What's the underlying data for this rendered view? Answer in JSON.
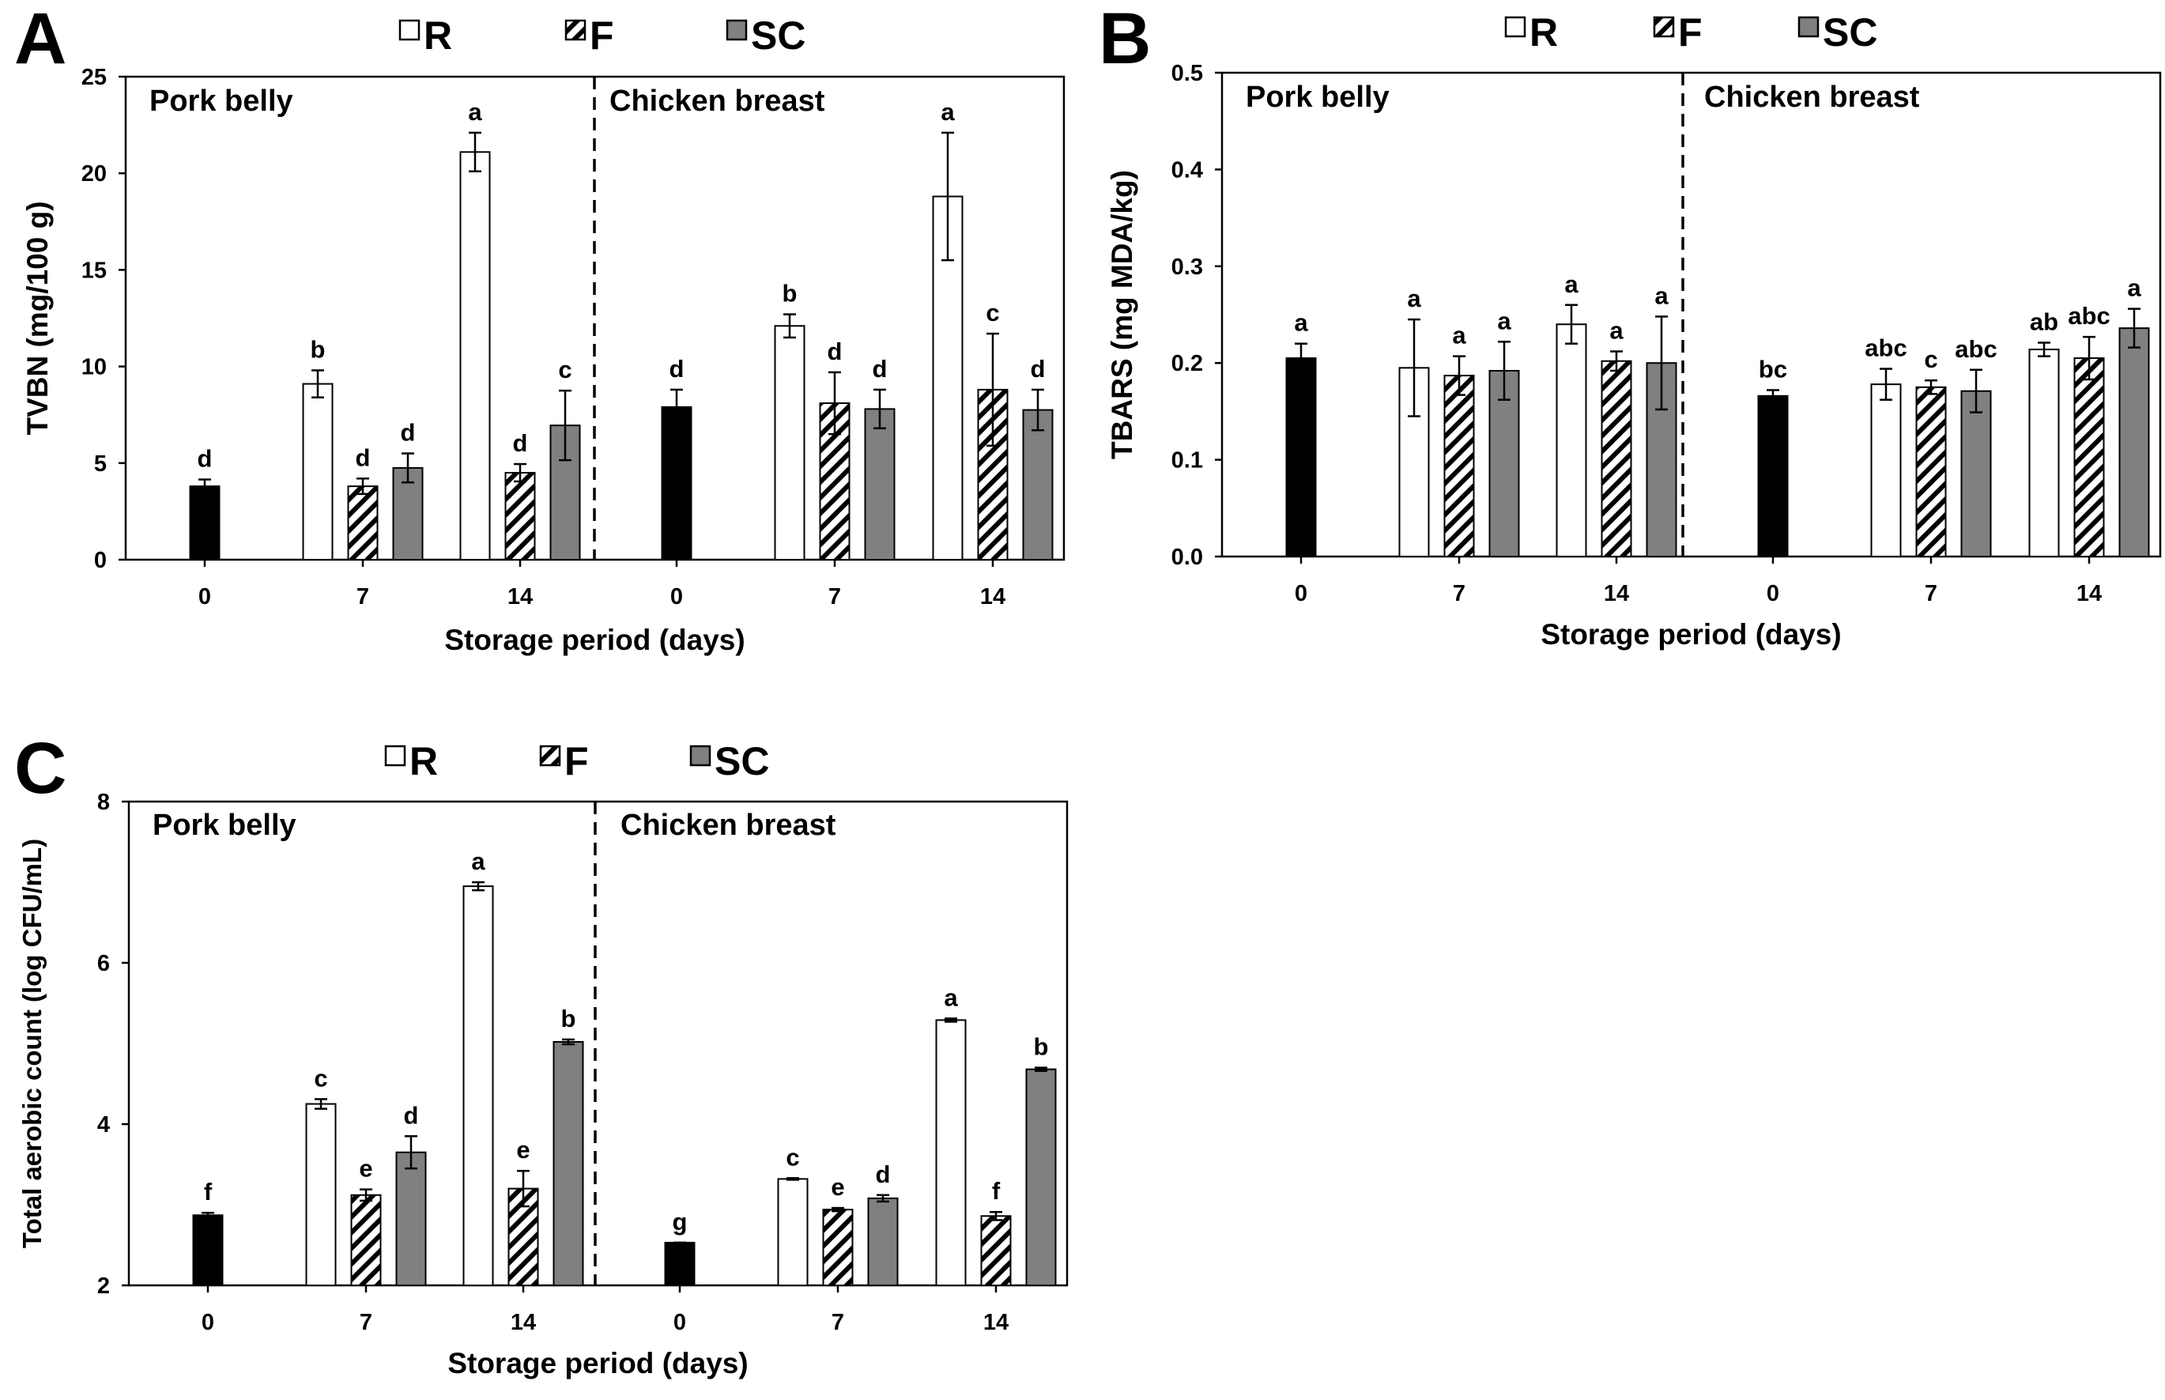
{
  "colors": {
    "R": "#ffffff",
    "F": "hatch",
    "SC": "#808080",
    "Control": "#000000"
  },
  "legend": [
    {
      "key": "R",
      "label": "R",
      "fill": "#ffffff"
    },
    {
      "key": "F",
      "label": "F",
      "fill": "hatch"
    },
    {
      "key": "SC",
      "label": "SC",
      "fill": "#808080"
    }
  ],
  "chart_data": [
    {
      "panel": "A",
      "type": "bar",
      "ylabel": "TVBN (mg/100 g)",
      "xlabel": "Storage period (days)",
      "ylim": [
        0,
        25
      ],
      "yticks": [
        0,
        5,
        10,
        15,
        20,
        25
      ],
      "ytick_labels": [
        "0",
        "5",
        "10",
        "15",
        "20",
        "25"
      ],
      "regions": [
        "Pork belly",
        "Chicken breast"
      ],
      "groups": [
        {
          "region": 0,
          "label": "0",
          "bars": [
            {
              "series": "Control",
              "value": 3.8,
              "err": 0.35,
              "sig": "d"
            }
          ]
        },
        {
          "region": 0,
          "label": "7",
          "bars": [
            {
              "series": "R",
              "value": 9.1,
              "err": 0.7,
              "sig": "b"
            },
            {
              "series": "F",
              "value": 3.8,
              "err": 0.4,
              "sig": "d"
            },
            {
              "series": "SC",
              "value": 4.75,
              "err": 0.75,
              "sig": "d"
            }
          ]
        },
        {
          "region": 0,
          "label": "14",
          "bars": [
            {
              "series": "R",
              "value": 21.1,
              "err": 1.0,
              "sig": "a"
            },
            {
              "series": "F",
              "value": 4.5,
              "err": 0.45,
              "sig": "d"
            },
            {
              "series": "SC",
              "value": 6.95,
              "err": 1.8,
              "sig": "c"
            }
          ]
        },
        {
          "region": 1,
          "label": "0",
          "bars": [
            {
              "series": "Control",
              "value": 7.9,
              "err": 0.9,
              "sig": "d"
            }
          ]
        },
        {
          "region": 1,
          "label": "7",
          "bars": [
            {
              "series": "R",
              "value": 12.1,
              "err": 0.6,
              "sig": "b"
            },
            {
              "series": "F",
              "value": 8.1,
              "err": 1.6,
              "sig": "d"
            },
            {
              "series": "SC",
              "value": 7.8,
              "err": 1.0,
              "sig": "d"
            }
          ]
        },
        {
          "region": 1,
          "label": "14",
          "bars": [
            {
              "series": "R",
              "value": 18.8,
              "err": 3.3,
              "sig": "a"
            },
            {
              "series": "F",
              "value": 8.8,
              "err": 2.9,
              "sig": "c"
            },
            {
              "series": "SC",
              "value": 7.75,
              "err": 1.05,
              "sig": "d"
            }
          ]
        }
      ]
    },
    {
      "panel": "B",
      "type": "bar",
      "ylabel": "TBARS (mg MDA/kg)",
      "xlabel": "Storage period (days)",
      "ylim": [
        0,
        0.5
      ],
      "yticks": [
        0,
        0.1,
        0.2,
        0.3,
        0.4,
        0.5
      ],
      "ytick_labels": [
        "0.0",
        "0.1",
        "0.2",
        "0.3",
        "0.4",
        "0.5"
      ],
      "regions": [
        "Pork belly",
        "Chicken breast"
      ],
      "groups": [
        {
          "region": 0,
          "label": "0",
          "bars": [
            {
              "series": "Control",
              "value": 0.205,
              "err": 0.015,
              "sig": "a"
            }
          ]
        },
        {
          "region": 0,
          "label": "7",
          "bars": [
            {
              "series": "R",
              "value": 0.195,
              "err": 0.05,
              "sig": "a"
            },
            {
              "series": "F",
              "value": 0.187,
              "err": 0.02,
              "sig": "a"
            },
            {
              "series": "SC",
              "value": 0.192,
              "err": 0.03,
              "sig": "a"
            }
          ]
        },
        {
          "region": 0,
          "label": "14",
          "bars": [
            {
              "series": "R",
              "value": 0.24,
              "err": 0.02,
              "sig": "a"
            },
            {
              "series": "F",
              "value": 0.202,
              "err": 0.01,
              "sig": "a"
            },
            {
              "series": "SC",
              "value": 0.2,
              "err": 0.048,
              "sig": "a"
            }
          ]
        },
        {
          "region": 1,
          "label": "0",
          "bars": [
            {
              "series": "Control",
              "value": 0.166,
              "err": 0.006,
              "sig": "bc"
            }
          ]
        },
        {
          "region": 1,
          "label": "7",
          "bars": [
            {
              "series": "R",
              "value": 0.178,
              "err": 0.016,
              "sig": "abc"
            },
            {
              "series": "F",
              "value": 0.175,
              "err": 0.007,
              "sig": "c"
            },
            {
              "series": "SC",
              "value": 0.171,
              "err": 0.022,
              "sig": "abc"
            }
          ]
        },
        {
          "region": 1,
          "label": "14",
          "bars": [
            {
              "series": "R",
              "value": 0.214,
              "err": 0.007,
              "sig": "ab"
            },
            {
              "series": "F",
              "value": 0.205,
              "err": 0.022,
              "sig": "abc"
            },
            {
              "series": "SC",
              "value": 0.236,
              "err": 0.02,
              "sig": "a"
            }
          ]
        }
      ]
    },
    {
      "panel": "C",
      "type": "bar",
      "ylabel": "Total aerobic count (log CFU/mL)",
      "xlabel": "Storage period (days)",
      "ylim": [
        2,
        8
      ],
      "yticks": [
        2,
        4,
        6,
        8
      ],
      "ytick_labels": [
        "2",
        "4",
        "6",
        "8"
      ],
      "regions": [
        "Pork belly",
        "Chicken breast"
      ],
      "groups": [
        {
          "region": 0,
          "label": "0",
          "bars": [
            {
              "series": "Control",
              "value": 2.87,
              "err": 0.03,
              "sig": "f"
            }
          ]
        },
        {
          "region": 0,
          "label": "7",
          "bars": [
            {
              "series": "R",
              "value": 4.25,
              "err": 0.06,
              "sig": "c"
            },
            {
              "series": "F",
              "value": 3.12,
              "err": 0.07,
              "sig": "e"
            },
            {
              "series": "SC",
              "value": 3.65,
              "err": 0.2,
              "sig": "d"
            }
          ]
        },
        {
          "region": 0,
          "label": "14",
          "bars": [
            {
              "series": "R",
              "value": 6.95,
              "err": 0.05,
              "sig": "a"
            },
            {
              "series": "F",
              "value": 3.2,
              "err": 0.22,
              "sig": "e"
            },
            {
              "series": "SC",
              "value": 5.02,
              "err": 0.03,
              "sig": "b"
            }
          ]
        },
        {
          "region": 1,
          "label": "0",
          "bars": [
            {
              "series": "Control",
              "value": 2.53,
              "err": 0.0,
              "sig": "g"
            }
          ]
        },
        {
          "region": 1,
          "label": "7",
          "bars": [
            {
              "series": "R",
              "value": 3.32,
              "err": 0.01,
              "sig": "c"
            },
            {
              "series": "F",
              "value": 2.94,
              "err": 0.02,
              "sig": "e"
            },
            {
              "series": "SC",
              "value": 3.08,
              "err": 0.04,
              "sig": "d"
            }
          ]
        },
        {
          "region": 1,
          "label": "14",
          "bars": [
            {
              "series": "R",
              "value": 5.29,
              "err": 0.02,
              "sig": "a"
            },
            {
              "series": "F",
              "value": 2.86,
              "err": 0.05,
              "sig": "f"
            },
            {
              "series": "SC",
              "value": 4.68,
              "err": 0.02,
              "sig": "b"
            }
          ]
        }
      ]
    }
  ]
}
